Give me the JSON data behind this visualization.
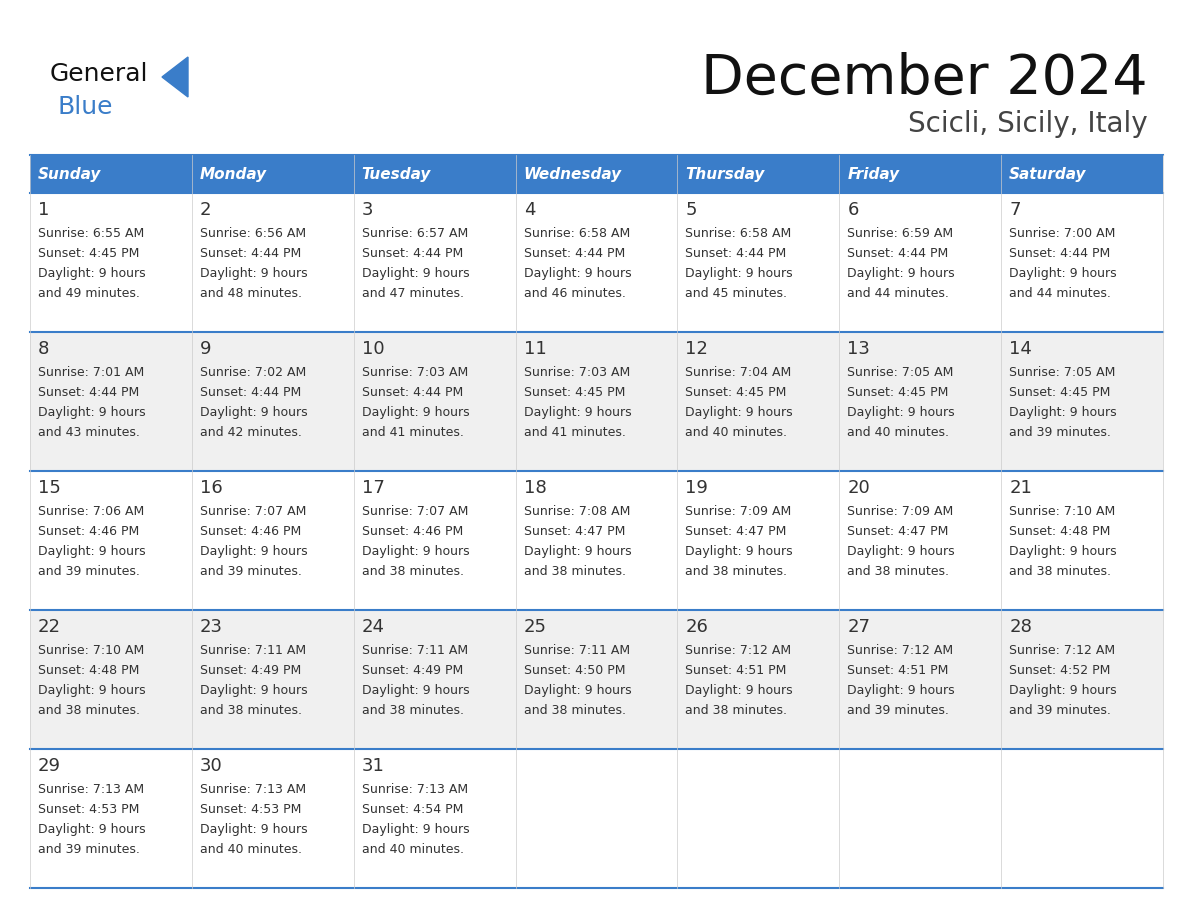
{
  "title": "December 2024",
  "subtitle": "Scicli, Sicily, Italy",
  "header_color": "#3A7DC9",
  "header_text_color": "#FFFFFF",
  "days": [
    "Sunday",
    "Monday",
    "Tuesday",
    "Wednesday",
    "Thursday",
    "Friday",
    "Saturday"
  ],
  "bg_color": "#FFFFFF",
  "alt_row_color": "#F0F0F0",
  "border_color": "#3A7DC9",
  "cell_border_color": "#AAAAAA",
  "text_color": "#333333",
  "logo_general_color": "#111111",
  "logo_blue_color": "#3A7DC9",
  "logo_triangle_color": "#3A7DC9",
  "title_color": "#111111",
  "subtitle_color": "#444444",
  "calendar_data": [
    [
      {
        "day": 1,
        "sunrise": "6:55 AM",
        "sunset": "4:45 PM",
        "daylight_hours": 9,
        "daylight_minutes": 49
      },
      {
        "day": 2,
        "sunrise": "6:56 AM",
        "sunset": "4:44 PM",
        "daylight_hours": 9,
        "daylight_minutes": 48
      },
      {
        "day": 3,
        "sunrise": "6:57 AM",
        "sunset": "4:44 PM",
        "daylight_hours": 9,
        "daylight_minutes": 47
      },
      {
        "day": 4,
        "sunrise": "6:58 AM",
        "sunset": "4:44 PM",
        "daylight_hours": 9,
        "daylight_minutes": 46
      },
      {
        "day": 5,
        "sunrise": "6:58 AM",
        "sunset": "4:44 PM",
        "daylight_hours": 9,
        "daylight_minutes": 45
      },
      {
        "day": 6,
        "sunrise": "6:59 AM",
        "sunset": "4:44 PM",
        "daylight_hours": 9,
        "daylight_minutes": 44
      },
      {
        "day": 7,
        "sunrise": "7:00 AM",
        "sunset": "4:44 PM",
        "daylight_hours": 9,
        "daylight_minutes": 44
      }
    ],
    [
      {
        "day": 8,
        "sunrise": "7:01 AM",
        "sunset": "4:44 PM",
        "daylight_hours": 9,
        "daylight_minutes": 43
      },
      {
        "day": 9,
        "sunrise": "7:02 AM",
        "sunset": "4:44 PM",
        "daylight_hours": 9,
        "daylight_minutes": 42
      },
      {
        "day": 10,
        "sunrise": "7:03 AM",
        "sunset": "4:44 PM",
        "daylight_hours": 9,
        "daylight_minutes": 41
      },
      {
        "day": 11,
        "sunrise": "7:03 AM",
        "sunset": "4:45 PM",
        "daylight_hours": 9,
        "daylight_minutes": 41
      },
      {
        "day": 12,
        "sunrise": "7:04 AM",
        "sunset": "4:45 PM",
        "daylight_hours": 9,
        "daylight_minutes": 40
      },
      {
        "day": 13,
        "sunrise": "7:05 AM",
        "sunset": "4:45 PM",
        "daylight_hours": 9,
        "daylight_minutes": 40
      },
      {
        "day": 14,
        "sunrise": "7:05 AM",
        "sunset": "4:45 PM",
        "daylight_hours": 9,
        "daylight_minutes": 39
      }
    ],
    [
      {
        "day": 15,
        "sunrise": "7:06 AM",
        "sunset": "4:46 PM",
        "daylight_hours": 9,
        "daylight_minutes": 39
      },
      {
        "day": 16,
        "sunrise": "7:07 AM",
        "sunset": "4:46 PM",
        "daylight_hours": 9,
        "daylight_minutes": 39
      },
      {
        "day": 17,
        "sunrise": "7:07 AM",
        "sunset": "4:46 PM",
        "daylight_hours": 9,
        "daylight_minutes": 38
      },
      {
        "day": 18,
        "sunrise": "7:08 AM",
        "sunset": "4:47 PM",
        "daylight_hours": 9,
        "daylight_minutes": 38
      },
      {
        "day": 19,
        "sunrise": "7:09 AM",
        "sunset": "4:47 PM",
        "daylight_hours": 9,
        "daylight_minutes": 38
      },
      {
        "day": 20,
        "sunrise": "7:09 AM",
        "sunset": "4:47 PM",
        "daylight_hours": 9,
        "daylight_minutes": 38
      },
      {
        "day": 21,
        "sunrise": "7:10 AM",
        "sunset": "4:48 PM",
        "daylight_hours": 9,
        "daylight_minutes": 38
      }
    ],
    [
      {
        "day": 22,
        "sunrise": "7:10 AM",
        "sunset": "4:48 PM",
        "daylight_hours": 9,
        "daylight_minutes": 38
      },
      {
        "day": 23,
        "sunrise": "7:11 AM",
        "sunset": "4:49 PM",
        "daylight_hours": 9,
        "daylight_minutes": 38
      },
      {
        "day": 24,
        "sunrise": "7:11 AM",
        "sunset": "4:49 PM",
        "daylight_hours": 9,
        "daylight_minutes": 38
      },
      {
        "day": 25,
        "sunrise": "7:11 AM",
        "sunset": "4:50 PM",
        "daylight_hours": 9,
        "daylight_minutes": 38
      },
      {
        "day": 26,
        "sunrise": "7:12 AM",
        "sunset": "4:51 PM",
        "daylight_hours": 9,
        "daylight_minutes": 38
      },
      {
        "day": 27,
        "sunrise": "7:12 AM",
        "sunset": "4:51 PM",
        "daylight_hours": 9,
        "daylight_minutes": 39
      },
      {
        "day": 28,
        "sunrise": "7:12 AM",
        "sunset": "4:52 PM",
        "daylight_hours": 9,
        "daylight_minutes": 39
      }
    ],
    [
      {
        "day": 29,
        "sunrise": "7:13 AM",
        "sunset": "4:53 PM",
        "daylight_hours": 9,
        "daylight_minutes": 39
      },
      {
        "day": 30,
        "sunrise": "7:13 AM",
        "sunset": "4:53 PM",
        "daylight_hours": 9,
        "daylight_minutes": 40
      },
      {
        "day": 31,
        "sunrise": "7:13 AM",
        "sunset": "4:54 PM",
        "daylight_hours": 9,
        "daylight_minutes": 40
      },
      null,
      null,
      null,
      null
    ]
  ],
  "fig_width": 11.88,
  "fig_height": 9.18,
  "dpi": 100
}
